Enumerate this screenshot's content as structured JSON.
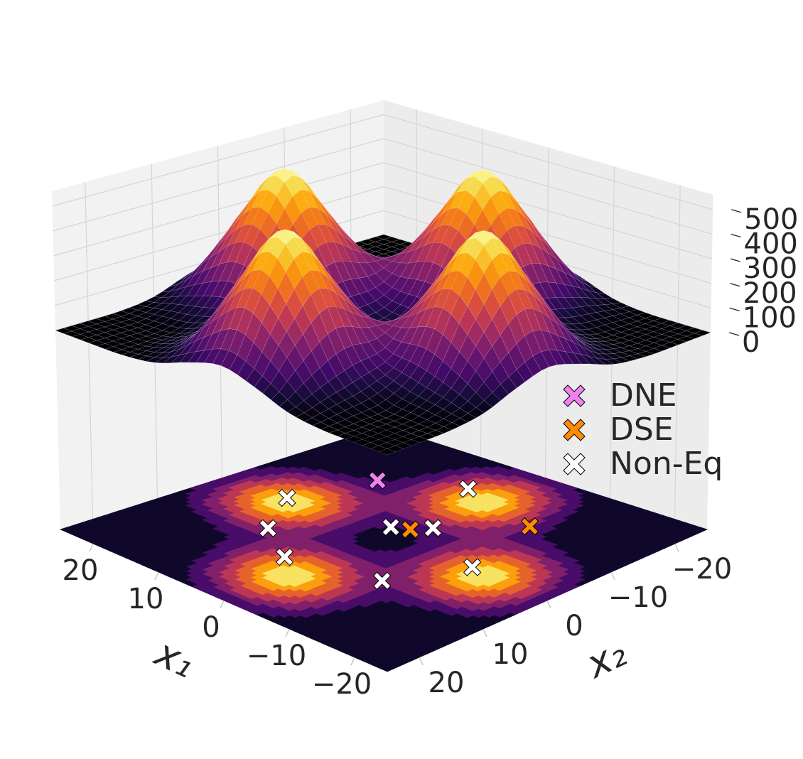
{
  "chart_data": {
    "type": "surface3d",
    "xlabel": "x₁",
    "ylabel": "x₂",
    "xlim": [
      -25,
      25
    ],
    "ylim": [
      -25,
      25
    ],
    "zlim": [
      -800,
      560
    ],
    "xticks": [
      {
        "value": -20,
        "label": "−20"
      },
      {
        "value": -10,
        "label": "−10"
      },
      0,
      10,
      20
    ],
    "yticks": [
      {
        "value": -20,
        "label": "−20"
      },
      {
        "value": -10,
        "label": "−10"
      },
      0,
      10,
      20
    ],
    "zticks": [
      0,
      100,
      200,
      300,
      400,
      500
    ],
    "grid": true,
    "legend": "center right",
    "surface": {
      "colormap": "inferno",
      "x": [
        -25,
        -20,
        -15,
        -10,
        -5,
        0,
        5,
        10,
        15,
        20,
        25
      ],
      "y": [
        -25,
        -20,
        -15,
        -10,
        -5,
        0,
        5,
        10,
        15,
        20,
        25
      ],
      "z": [
        [
          0,
          0,
          2,
          20,
          69,
          104,
          69,
          20,
          2,
          0,
          0
        ],
        [
          0,
          1,
          9,
          70,
          240,
          363,
          240,
          70,
          9,
          1,
          0
        ],
        [
          2,
          9,
          26,
          113,
          365,
          551,
          365,
          113,
          26,
          9,
          2
        ],
        [
          20,
          70,
          113,
          138,
          260,
          368,
          260,
          138,
          113,
          70,
          20
        ],
        [
          69,
          240,
          365,
          260,
          139,
          122,
          139,
          260,
          365,
          240,
          69
        ],
        [
          104,
          363,
          551,
          368,
          122,
          52,
          122,
          368,
          551,
          363,
          104
        ],
        [
          69,
          240,
          365,
          260,
          139,
          122,
          139,
          260,
          365,
          240,
          69
        ],
        [
          20,
          70,
          113,
          138,
          260,
          368,
          260,
          138,
          113,
          70,
          20
        ],
        [
          2,
          9,
          26,
          113,
          365,
          551,
          365,
          113,
          26,
          9,
          2
        ],
        [
          0,
          1,
          9,
          70,
          240,
          363,
          240,
          70,
          9,
          1,
          0
        ],
        [
          0,
          0,
          2,
          20,
          69,
          104,
          69,
          20,
          2,
          0,
          0
        ]
      ]
    },
    "series": [
      {
        "name": "DNE",
        "color": "#ee82ee",
        "x": [
          13
        ],
        "y": [
          -12
        ]
      },
      {
        "name": "DSE",
        "color": "#ff8c00",
        "x": [
          0,
          -9
        ],
        "y": [
          -4,
          -13.5
        ]
      },
      {
        "name": "Non-Eq",
        "color": "#ffffff",
        "x": [
          4,
          16,
          11,
          2,
          -1.5,
          4,
          -12.5,
          -8
        ],
        "y": [
          -17,
          -1,
          7,
          -3,
          -6,
          11.5,
          -1,
          8.5
        ]
      }
    ]
  }
}
